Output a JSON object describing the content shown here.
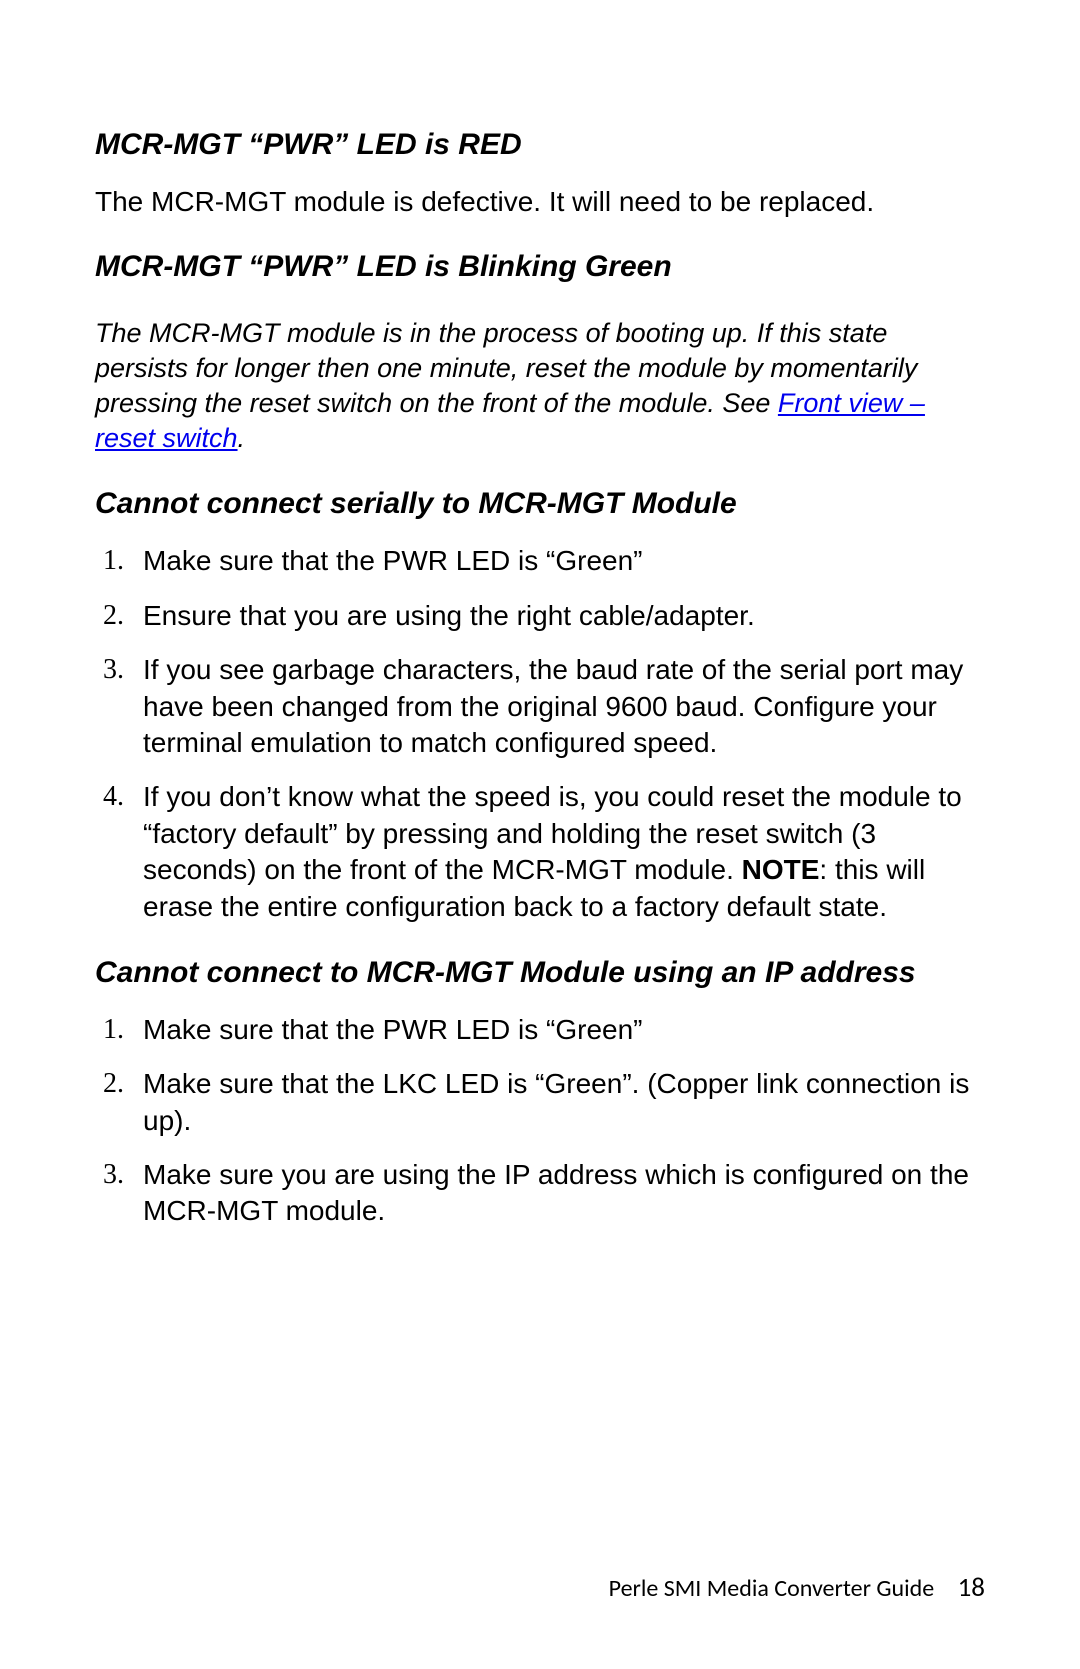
{
  "section1": {
    "heading": "MCR-MGT “PWR” LED is RED",
    "body": "The MCR-MGT module is defective. It will need to be replaced."
  },
  "section2": {
    "heading": "MCR-MGT “PWR” LED is Blinking Green",
    "body_pre": "The MCR-MGT module is in the process of booting up.  If this state persists for longer then one minute, reset the module by momentarily pressing the reset switch on the front of the module. See ",
    "link_text": "Front view – reset switch",
    "body_post": "."
  },
  "section3": {
    "heading": "Cannot connect serially to MCR-MGT Module",
    "items": [
      "Make sure that the PWR LED is “Green”",
      "Ensure that you are using the right cable/adapter.",
      "If you see garbage characters, the baud rate of the serial port may have been changed from the original 9600 baud. Configure your terminal emulation to match configured speed.",
      "If you don’t know what the speed is, you could reset the module to “factory default” by pressing and holding the reset switch (3 seconds) on the front of the MCR-MGT module. "
    ],
    "note_label": "NOTE",
    "note_tail": ": this will erase the entire configuration back to a factory default state."
  },
  "section4": {
    "heading": "Cannot connect to MCR-MGT Module using an IP address",
    "items": [
      "Make sure that the PWR LED is “Green”",
      "Make sure that the LKC LED is “Green”. (Copper link connection is up).",
      "Make sure you are using the IP address which is configured on the MCR-MGT module."
    ]
  },
  "footer": {
    "title": "Perle SMI Media Converter Guide",
    "page": "18"
  },
  "list_markers": [
    "1.",
    "2.",
    "3.",
    "4."
  ]
}
